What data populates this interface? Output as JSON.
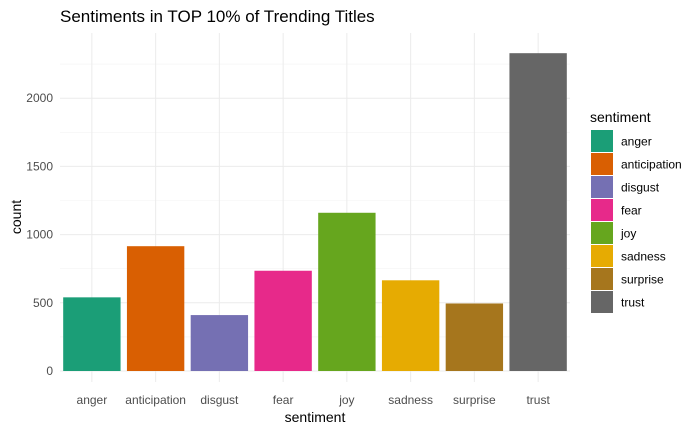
{
  "chart_data": {
    "type": "bar",
    "title": "Sentiments in TOP 10% of Trending Titles",
    "xlabel": "sentiment",
    "ylabel": "count",
    "categories": [
      "anger",
      "anticipation",
      "disgust",
      "fear",
      "joy",
      "sadness",
      "surprise",
      "trust"
    ],
    "values": [
      540,
      915,
      410,
      735,
      1160,
      665,
      495,
      2330
    ],
    "colors": [
      "#1b9e77",
      "#d95f02",
      "#7570b3",
      "#e7298a",
      "#66a61e",
      "#e6ab02",
      "#a6761d",
      "#666666"
    ],
    "ylim": [
      0,
      2390
    ],
    "yticks": [
      0,
      500,
      1000,
      1500,
      2000
    ],
    "grid": true,
    "legend": {
      "title": "sentiment",
      "placement": "right"
    }
  }
}
